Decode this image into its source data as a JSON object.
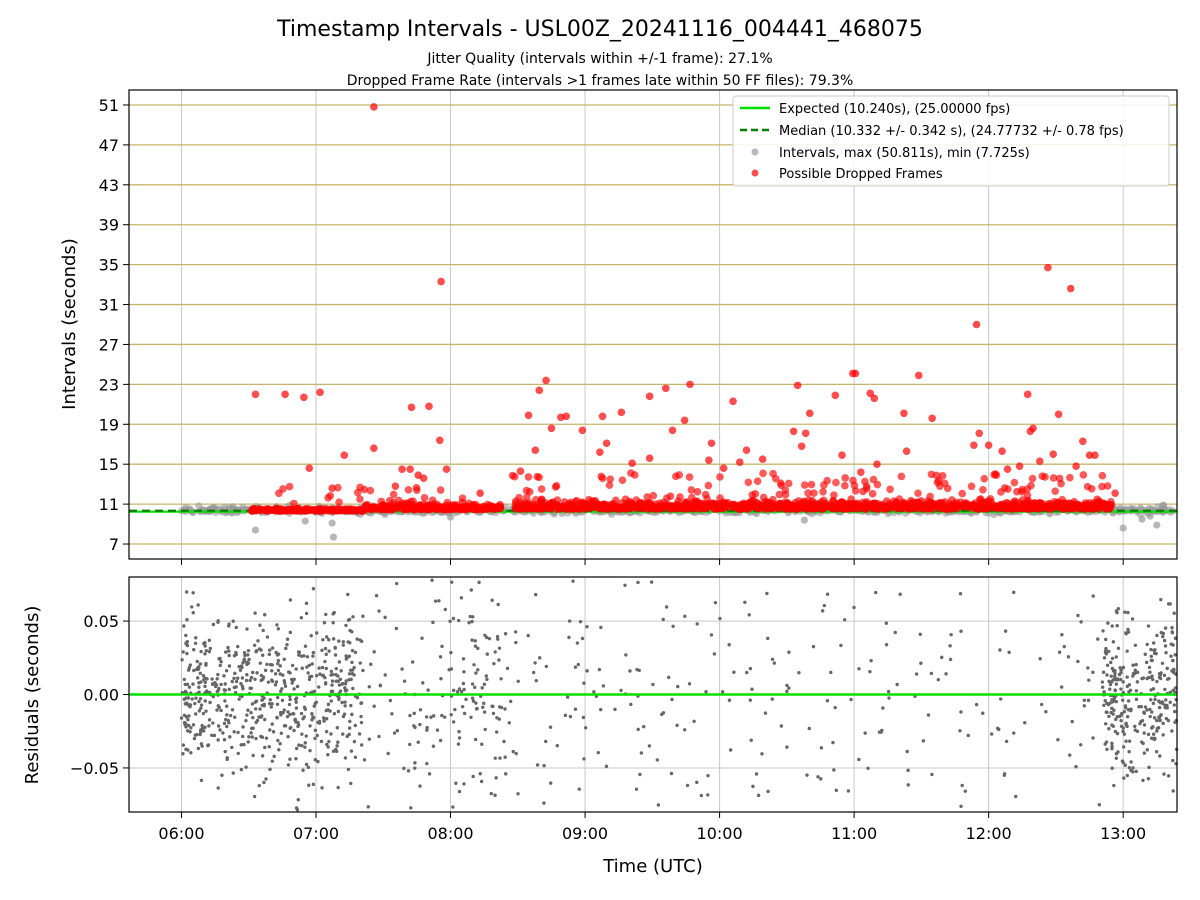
{
  "title": "Timestamp Intervals - USL00Z_20241116_004441_468075",
  "subtitle_line1": "Jitter Quality (intervals within +/-1 frame): 27.1%",
  "subtitle_line2": "Dropped Frame Rate (intervals >1 frames late within 50 FF files): 79.3%",
  "colors": {
    "expected": "#00e000",
    "median": "#008000",
    "intervals": "#999999",
    "dropped": "#ff0000",
    "residuals": "#666666",
    "gridline_gold": "#c8b46a",
    "gridline_gray": "#c8c8c8"
  },
  "chart_data": [
    {
      "type": "scatter",
      "panel": "top",
      "xlabel": "",
      "ylabel": "Intervals (seconds)",
      "xlim": [
        5.61,
        13.4
      ],
      "ylim": [
        5.5,
        52.5
      ],
      "yticks": [
        7,
        11,
        15,
        19,
        23,
        27,
        31,
        35,
        39,
        43,
        47,
        51
      ],
      "grid": "horizontal gold lines at y ticks, vertical gray lines at x ticks",
      "legend_position": "top-right",
      "legend": [
        {
          "label": "Expected (10.240s), (25.00000 fps)",
          "kind": "solid-line",
          "color": "#00e000"
        },
        {
          "label": "Median (10.332 +/- 0.342 s), (24.77732 +/- 0.78 fps)",
          "kind": "dashed-line",
          "color": "#008000"
        },
        {
          "label": "Intervals, max (50.811s), min (7.725s)",
          "kind": "dot",
          "color": "#999999"
        },
        {
          "label": "Possible Dropped Frames",
          "kind": "dot",
          "color": "#ff0000"
        }
      ],
      "expected_line": 10.24,
      "median_line": 10.332,
      "series": [
        {
          "name": "Possible Dropped Frames",
          "points": [
            [
              6.55,
              22.0
            ],
            [
              6.77,
              22.0
            ],
            [
              6.91,
              21.7
            ],
            [
              6.95,
              14.6
            ],
            [
              7.03,
              22.2
            ],
            [
              7.12,
              12.6
            ],
            [
              7.21,
              15.9
            ],
            [
              7.43,
              50.8
            ],
            [
              7.43,
              16.6
            ],
            [
              7.59,
              12.8
            ],
            [
              7.64,
              14.5
            ],
            [
              7.7,
              14.5
            ],
            [
              7.71,
              20.7
            ],
            [
              7.76,
              13.9
            ],
            [
              7.8,
              13.6
            ],
            [
              7.84,
              20.8
            ],
            [
              7.92,
              17.4
            ],
            [
              7.93,
              33.3
            ],
            [
              7.97,
              14.5
            ],
            [
              8.22,
              12.1
            ],
            [
              8.52,
              14.3
            ],
            [
              8.58,
              19.9
            ],
            [
              8.63,
              16.4
            ],
            [
              8.66,
              22.4
            ],
            [
              8.71,
              23.4
            ],
            [
              8.75,
              18.6
            ],
            [
              8.82,
              19.7
            ],
            [
              8.86,
              19.8
            ],
            [
              8.98,
              18.4
            ],
            [
              9.11,
              16.2
            ],
            [
              9.13,
              19.8
            ],
            [
              9.16,
              17.1
            ],
            [
              9.27,
              20.2
            ],
            [
              9.35,
              15.1
            ],
            [
              9.48,
              21.8
            ],
            [
              9.48,
              15.6
            ],
            [
              9.6,
              22.6
            ],
            [
              9.65,
              18.4
            ],
            [
              9.74,
              19.4
            ],
            [
              9.78,
              23.0
            ],
            [
              9.92,
              15.4
            ],
            [
              9.94,
              17.1
            ],
            [
              10.03,
              14.6
            ],
            [
              10.1,
              21.3
            ],
            [
              10.15,
              15.2
            ],
            [
              10.2,
              16.4
            ],
            [
              10.32,
              15.5
            ],
            [
              10.55,
              18.3
            ],
            [
              10.58,
              22.9
            ],
            [
              10.61,
              16.8
            ],
            [
              10.64,
              18.1
            ],
            [
              10.67,
              20.1
            ],
            [
              10.86,
              21.9
            ],
            [
              10.91,
              15.9
            ],
            [
              10.99,
              24.1
            ],
            [
              11.01,
              24.1
            ],
            [
              11.05,
              14.2
            ],
            [
              11.12,
              22.1
            ],
            [
              11.15,
              21.6
            ],
            [
              11.17,
              15.0
            ],
            [
              11.37,
              20.1
            ],
            [
              11.39,
              16.3
            ],
            [
              11.48,
              23.9
            ],
            [
              11.58,
              19.6
            ],
            [
              11.89,
              16.9
            ],
            [
              11.91,
              29.0
            ],
            [
              11.93,
              18.1
            ],
            [
              12.0,
              16.9
            ],
            [
              12.1,
              16.3
            ],
            [
              12.14,
              14.5
            ],
            [
              12.23,
              14.8
            ],
            [
              12.29,
              22.0
            ],
            [
              12.31,
              18.3
            ],
            [
              12.33,
              18.6
            ],
            [
              12.38,
              15.3
            ],
            [
              12.44,
              34.7
            ],
            [
              12.48,
              16.0
            ],
            [
              12.52,
              20.0
            ],
            [
              12.61,
              32.6
            ],
            [
              12.65,
              14.8
            ],
            [
              12.7,
              17.3
            ],
            [
              12.75,
              15.9
            ],
            [
              12.79,
              15.9
            ],
            [
              12.94,
              12.1
            ]
          ]
        },
        {
          "name": "Intervals",
          "points": [
            [
              6.55,
              8.4
            ],
            [
              7.12,
              9.1
            ],
            [
              7.13,
              7.7
            ],
            [
              6.92,
              9.3
            ],
            [
              8.0,
              9.7
            ],
            [
              10.63,
              9.4
            ],
            [
              13.0,
              8.6
            ],
            [
              13.14,
              9.5
            ],
            [
              13.25,
              8.9
            ],
            [
              13.2,
              9.8
            ],
            [
              13.3,
              10.9
            ],
            [
              13.35,
              10.2
            ]
          ]
        }
      ]
    },
    {
      "type": "scatter",
      "panel": "bottom",
      "xlabel": "Time (UTC)",
      "ylabel": "Residuals (seconds)",
      "xlim": [
        5.61,
        13.4
      ],
      "ylim": [
        -0.08,
        0.08
      ],
      "xticks": [
        "06:00",
        "07:00",
        "08:00",
        "09:00",
        "10:00",
        "11:00",
        "12:00",
        "13:00"
      ],
      "yticks": [
        "−0.05",
        "0.00",
        "0.05"
      ],
      "ytick_values": [
        -0.05,
        0.0,
        0.05
      ],
      "grid": "gray lines at x and y ticks",
      "zero_line": 0.0,
      "series": [
        {
          "name": "Residuals",
          "note_density": "dense clusters 06:00-07:20 and 12:50-13:24, sparse elsewhere"
        }
      ]
    }
  ]
}
